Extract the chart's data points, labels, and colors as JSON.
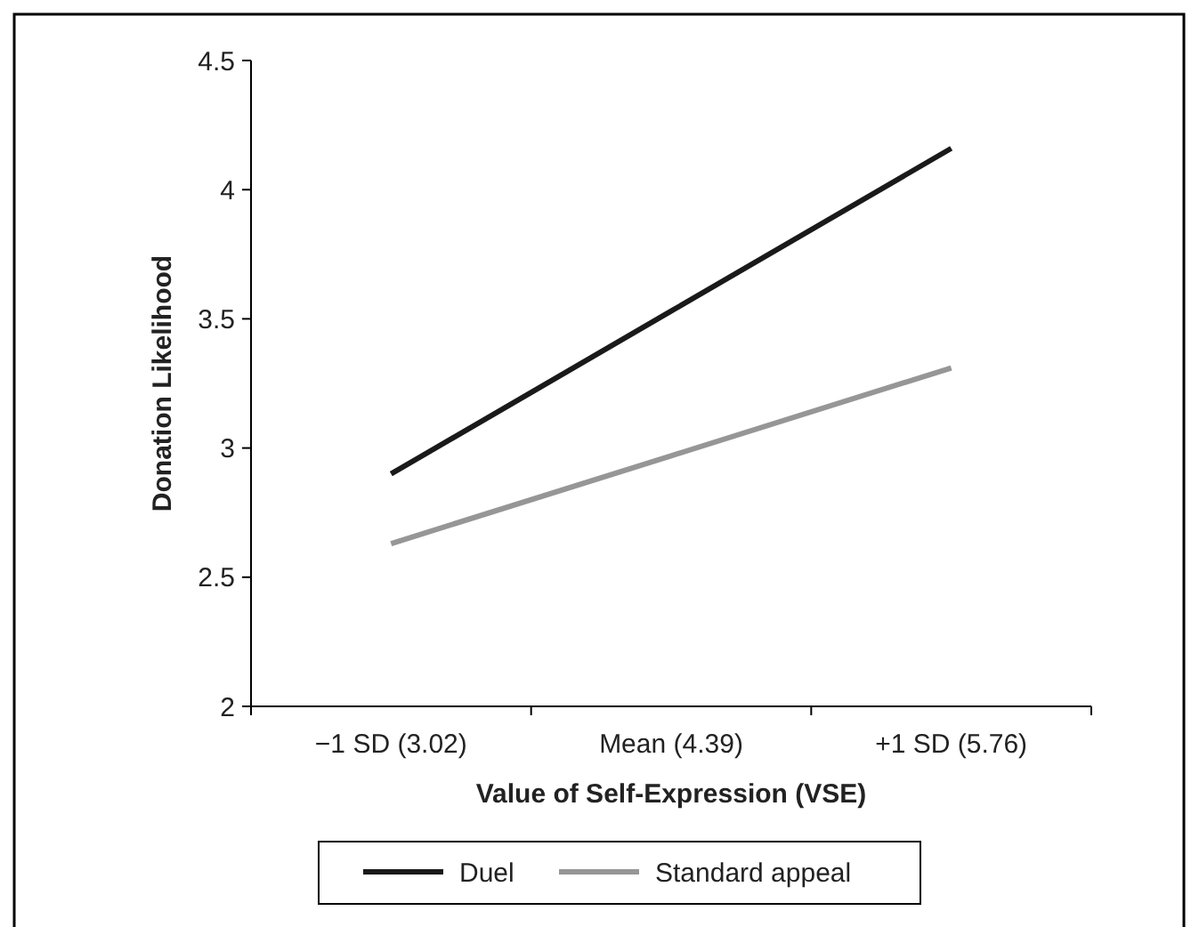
{
  "chart_data": {
    "type": "line",
    "xlabel": "Value of Self-Expression (VSE)",
    "ylabel": "Donation Likelihood",
    "categories": [
      "−1 SD (3.02)",
      "Mean (4.39)",
      "+1 SD (5.76)"
    ],
    "series": [
      {
        "name": "Duel",
        "color": "#1a1a1a",
        "values": [
          2.9,
          3.53,
          4.16
        ]
      },
      {
        "name": "Standard appeal",
        "color": "#969696",
        "values": [
          2.63,
          2.97,
          3.31
        ]
      }
    ],
    "ylim": [
      2,
      4.5
    ],
    "yticks": [
      2,
      2.5,
      3,
      3.5,
      4,
      4.5
    ],
    "grid": false,
    "legend": "bottom",
    "marker": "none",
    "line_style": "solid"
  }
}
